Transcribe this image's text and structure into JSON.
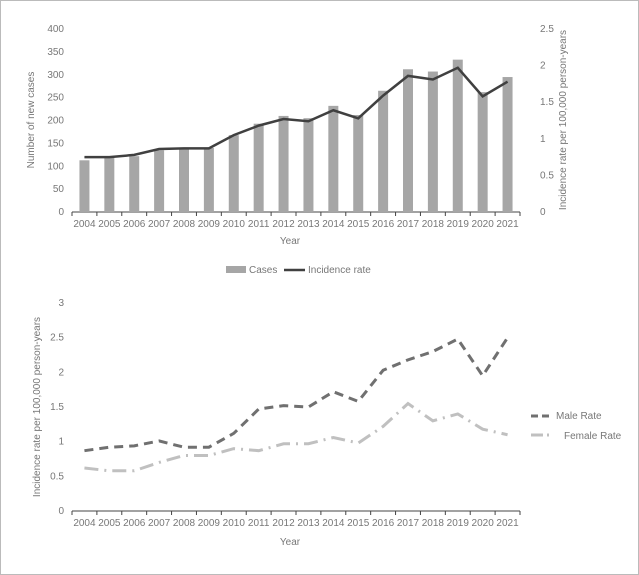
{
  "chart_data": [
    {
      "type": "bar+line",
      "categories": [
        "2004",
        "2005",
        "2006",
        "2007",
        "2008",
        "2009",
        "2010",
        "2011",
        "2012",
        "2013",
        "2014",
        "2015",
        "2016",
        "2017",
        "2018",
        "2019",
        "2020",
        "2021"
      ],
      "series": [
        {
          "name": "Cases",
          "type": "bar",
          "axis": "left",
          "color": "#a6a6a6",
          "values": [
            113,
            120,
            122,
            135,
            140,
            140,
            168,
            193,
            210,
            205,
            232,
            212,
            265,
            312,
            307,
            333,
            262,
            295
          ]
        },
        {
          "name": "Incidence rate",
          "type": "line",
          "axis": "right",
          "color": "#404040",
          "values": [
            0.75,
            0.75,
            0.78,
            0.86,
            0.87,
            0.87,
            1.05,
            1.18,
            1.27,
            1.24,
            1.39,
            1.28,
            1.59,
            1.86,
            1.81,
            1.97,
            1.58,
            1.78
          ]
        }
      ],
      "xlabel": "Year",
      "ylabel": "Number of new cases",
      "y2label": "Incidence rate per 100,000 person-years",
      "ylim": [
        0,
        400
      ],
      "yticks": [
        "0",
        "50",
        "100",
        "150",
        "200",
        "250",
        "300",
        "350",
        "400"
      ],
      "y2lim": [
        0,
        2.5
      ],
      "y2ticks": [
        "0",
        "0.5",
        "1",
        "1.5",
        "2",
        "2.5"
      ],
      "legend": "bottom",
      "grid": false
    },
    {
      "type": "line",
      "categories": [
        "2004",
        "2005",
        "2006",
        "2007",
        "2008",
        "2009",
        "2010",
        "2011",
        "2012",
        "2013",
        "2014",
        "2015",
        "2016",
        "2017",
        "2018",
        "2019",
        "2020",
        "2021"
      ],
      "series": [
        {
          "name": "Male Rate",
          "color": "#707070",
          "dash": "dashed",
          "values": [
            0.87,
            0.92,
            0.94,
            1.01,
            0.92,
            0.92,
            1.12,
            1.47,
            1.52,
            1.5,
            1.72,
            1.58,
            2.03,
            2.18,
            2.3,
            2.48,
            1.95,
            2.5
          ]
        },
        {
          "name": "Female Rate",
          "color": "#c0c0c0",
          "dash": "dash-dot",
          "values": [
            0.62,
            0.58,
            0.58,
            0.7,
            0.8,
            0.8,
            0.9,
            0.87,
            0.97,
            0.97,
            1.06,
            0.98,
            1.22,
            1.55,
            1.3,
            1.4,
            1.18,
            1.1
          ]
        }
      ],
      "xlabel": "Year",
      "ylabel": "Incidence rate per 100,000 person-years",
      "ylim": [
        0,
        3
      ],
      "yticks": [
        "0",
        "0.5",
        "1",
        "1.5",
        "2",
        "2.5",
        "3"
      ],
      "legend": "right",
      "grid": false
    }
  ]
}
